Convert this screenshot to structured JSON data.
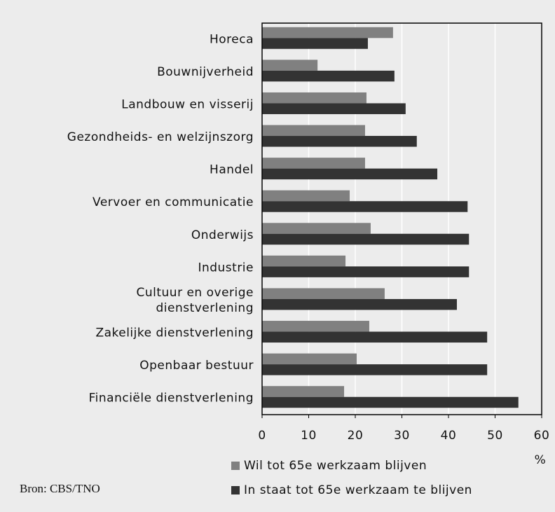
{
  "chart_data": {
    "type": "barh",
    "categories": [
      "Horeca",
      "Bouwnijverheid",
      "Landbouw en visserij",
      "Gezondheids- en welzijnszorg",
      "Handel",
      "Vervoer en communicatie",
      "Onderwijs",
      "Industrie",
      "Cultuur en overige\ndienstverlening",
      "Zakelijke dienstverlening",
      "Openbaar bestuur",
      "Financiële dienstverlening"
    ],
    "series": [
      {
        "name": "Wil tot 65e werkzaam blijven",
        "color": "#808080",
        "values": [
          28.1,
          11.9,
          22.4,
          22.1,
          22.1,
          18.8,
          23.3,
          17.9,
          26.3,
          23.0,
          20.3,
          17.6
        ]
      },
      {
        "name": "In staat tot 65e werkzaam te blijven",
        "color": "#333333",
        "values": [
          22.7,
          28.4,
          30.8,
          33.2,
          37.6,
          44.1,
          44.4,
          44.4,
          41.8,
          48.3,
          48.3,
          55.0
        ]
      }
    ],
    "xlabel": "%",
    "xlim": [
      0,
      60
    ],
    "xticks": [
      0,
      10,
      20,
      30,
      40,
      50,
      60
    ],
    "grid": true,
    "source": "Bron: CBS/TNO"
  }
}
